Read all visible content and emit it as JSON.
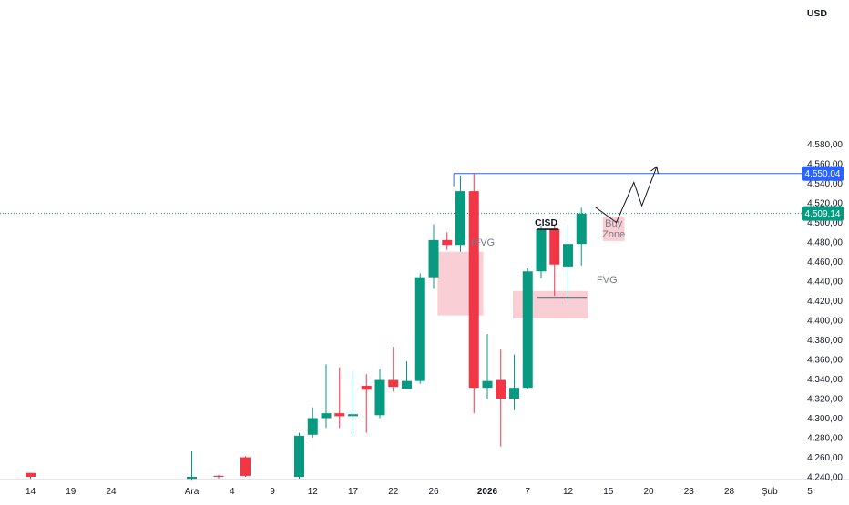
{
  "chart_data": {
    "type": "candlestick",
    "currency_label": "USD",
    "colors": {
      "up": "#089981",
      "down": "#f23645",
      "zone": "#f9c5ce",
      "level": "#2962ff",
      "last": "#089981"
    },
    "y_ticks": [
      {
        "v": 4580,
        "label": "4.580,00"
      },
      {
        "v": 4560,
        "label": "4.560,00"
      },
      {
        "v": 4540,
        "label": "4.540,00"
      },
      {
        "v": 4520,
        "label": "4.520,00"
      },
      {
        "v": 4500,
        "label": "4.500,00"
      },
      {
        "v": 4480,
        "label": "4.480,00"
      },
      {
        "v": 4460,
        "label": "4.460,00"
      },
      {
        "v": 4440,
        "label": "4.440,00"
      },
      {
        "v": 4420,
        "label": "4.420,00"
      },
      {
        "v": 4400,
        "label": "4.400,00"
      },
      {
        "v": 4380,
        "label": "4.380,00"
      },
      {
        "v": 4360,
        "label": "4.360,00"
      },
      {
        "v": 4340,
        "label": "4.340,00"
      },
      {
        "v": 4320,
        "label": "4.320,00"
      },
      {
        "v": 4300,
        "label": "4.300,00"
      },
      {
        "v": 4280,
        "label": "4.280,00"
      },
      {
        "v": 4260,
        "label": "4.260,00"
      },
      {
        "v": 4240,
        "label": "4.240,00"
      }
    ],
    "x_ticks": [
      {
        "i": 0,
        "label": "14",
        "bold": false
      },
      {
        "i": 3,
        "label": "19",
        "bold": false
      },
      {
        "i": 6,
        "label": "24",
        "bold": false
      },
      {
        "i": 12,
        "label": "Ara",
        "bold": false
      },
      {
        "i": 15,
        "label": "4",
        "bold": false
      },
      {
        "i": 18,
        "label": "9",
        "bold": false
      },
      {
        "i": 21,
        "label": "12",
        "bold": false
      },
      {
        "i": 24,
        "label": "17",
        "bold": false
      },
      {
        "i": 27,
        "label": "22",
        "bold": false
      },
      {
        "i": 30,
        "label": "26",
        "bold": false
      },
      {
        "i": 34,
        "label": "2026",
        "bold": true
      },
      {
        "i": 37,
        "label": "7",
        "bold": false
      },
      {
        "i": 40,
        "label": "12",
        "bold": false
      },
      {
        "i": 43,
        "label": "15",
        "bold": false
      },
      {
        "i": 46,
        "label": "20",
        "bold": false
      },
      {
        "i": 49,
        "label": "23",
        "bold": false
      },
      {
        "i": 52,
        "label": "28",
        "bold": false
      },
      {
        "i": 55,
        "label": "Şub",
        "bold": false
      },
      {
        "i": 58,
        "label": "5",
        "bold": false
      }
    ],
    "candles": [
      {
        "i": 0,
        "o": 4244,
        "h": 4244,
        "l": 4238,
        "c": 4240
      },
      {
        "i": 12,
        "o": 4238,
        "h": 4266,
        "l": 4236,
        "c": 4240
      },
      {
        "i": 14,
        "o": 4241,
        "h": 4242,
        "l": 4238,
        "c": 4240
      },
      {
        "i": 16,
        "o": 4260,
        "h": 4261,
        "l": 4240,
        "c": 4241
      },
      {
        "i": 20,
        "o": 4240,
        "h": 4285,
        "l": 4238,
        "c": 4282
      },
      {
        "i": 21,
        "o": 4283,
        "h": 4311,
        "l": 4280,
        "c": 4300
      },
      {
        "i": 22,
        "o": 4300,
        "h": 4355,
        "l": 4290,
        "c": 4305
      },
      {
        "i": 23,
        "o": 4305,
        "h": 4352,
        "l": 4290,
        "c": 4302
      },
      {
        "i": 24,
        "o": 4302,
        "h": 4348,
        "l": 4282,
        "c": 4304
      },
      {
        "i": 25,
        "o": 4333,
        "h": 4345,
        "l": 4285,
        "c": 4329
      },
      {
        "i": 26,
        "o": 4303,
        "h": 4350,
        "l": 4300,
        "c": 4339
      },
      {
        "i": 27,
        "o": 4339,
        "h": 4373,
        "l": 4327,
        "c": 4332
      },
      {
        "i": 28,
        "o": 4330,
        "h": 4358,
        "l": 4330,
        "c": 4338
      },
      {
        "i": 29,
        "o": 4338,
        "h": 4448,
        "l": 4335,
        "c": 4444
      },
      {
        "i": 30,
        "o": 4444,
        "h": 4498,
        "l": 4432,
        "c": 4482
      },
      {
        "i": 31,
        "o": 4482,
        "h": 4490,
        "l": 4472,
        "c": 4477
      },
      {
        "i": 32,
        "o": 4477,
        "h": 4548,
        "l": 4470,
        "c": 4532
      },
      {
        "i": 33,
        "o": 4532,
        "h": 4550,
        "l": 4305,
        "c": 4331
      },
      {
        "i": 34,
        "o": 4331,
        "h": 4386,
        "l": 4320,
        "c": 4338
      },
      {
        "i": 35,
        "o": 4339,
        "h": 4370,
        "l": 4271,
        "c": 4320
      },
      {
        "i": 36,
        "o": 4320,
        "h": 4365,
        "l": 4308,
        "c": 4331
      },
      {
        "i": 37,
        "o": 4331,
        "h": 4453,
        "l": 4330,
        "c": 4450
      },
      {
        "i": 38,
        "o": 4450,
        "h": 4497,
        "l": 4443,
        "c": 4493
      },
      {
        "i": 39,
        "o": 4493,
        "h": 4498,
        "l": 4425,
        "c": 4457
      },
      {
        "i": 40,
        "o": 4455,
        "h": 4497,
        "l": 4418,
        "c": 4478
      },
      {
        "i": 41,
        "o": 4478,
        "h": 4515,
        "l": 4456,
        "c": 4509
      }
    ],
    "zones": [
      {
        "name": "IFVG",
        "x0": 30.3,
        "x1": 33.7,
        "y0": 4405,
        "y1": 4470
      },
      {
        "name": "FVG",
        "x0": 35.9,
        "x1": 41.5,
        "y0": 4402,
        "y1": 4430
      },
      {
        "name": "Buy Zone",
        "x0": 42.6,
        "x1": 44.2,
        "y0": 4481,
        "y1": 4506
      }
    ],
    "zone_labels": [
      "IFVG",
      "FVG"
    ],
    "buy_zone_label": [
      "Buy",
      "Zone"
    ],
    "cisd_label": "CISD",
    "cisd_line": {
      "x0": 37.7,
      "x1": 39.3,
      "y": 4493
    },
    "fvg_line": {
      "x0": 37.7,
      "x1": 41.4,
      "y": 4423
    },
    "level_line": {
      "x0": 31.5,
      "y": 4550.04,
      "label": "4.550,04"
    },
    "last_price": {
      "y": 4509.14,
      "label": "4.509,14"
    },
    "projection": [
      {
        "x": 42.0,
        "y": 4516
      },
      {
        "x": 43.6,
        "y": 4500
      },
      {
        "x": 44.9,
        "y": 4541
      },
      {
        "x": 45.5,
        "y": 4517
      },
      {
        "x": 46.6,
        "y": 4557
      }
    ],
    "x_range": [
      -1,
      59
    ],
    "y_range": [
      4236,
      4596
    ]
  }
}
